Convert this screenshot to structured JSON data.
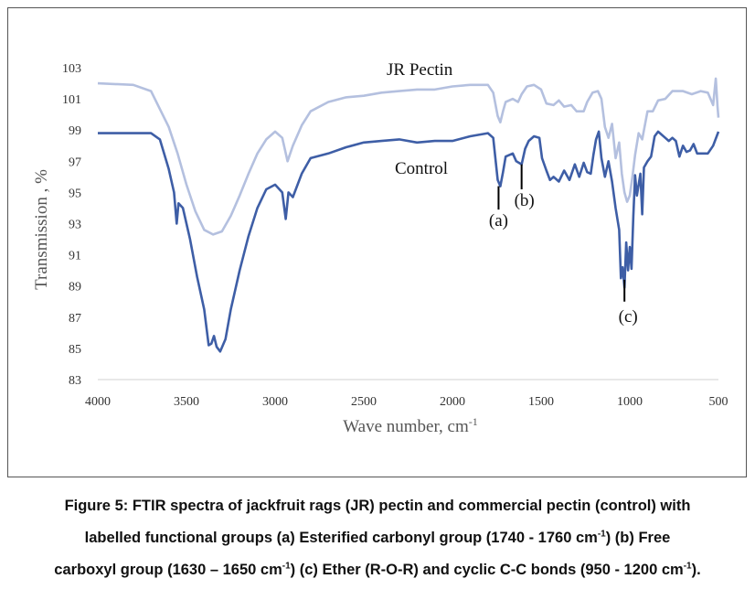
{
  "chart_data": {
    "type": "line",
    "title": "",
    "xlabel": "Wave number, cm",
    "xlabel_sup": "-1",
    "ylabel": "Transmission , %",
    "xlim": [
      4000,
      500
    ],
    "ylim": [
      83,
      103
    ],
    "x_ticks": [
      "4000",
      "3500",
      "3000",
      "2500",
      "2000",
      "1500",
      "1000",
      "500"
    ],
    "y_ticks": [
      "83",
      "85",
      "87",
      "89",
      "91",
      "93",
      "95",
      "97",
      "99",
      "101",
      "103"
    ],
    "grid": false,
    "series": [
      {
        "name": "JR Pectin",
        "color": "#b4c0df",
        "points": [
          [
            4000,
            102.0
          ],
          [
            3800,
            101.9
          ],
          [
            3700,
            101.5
          ],
          [
            3600,
            99.2
          ],
          [
            3550,
            97.5
          ],
          [
            3500,
            95.5
          ],
          [
            3450,
            93.8
          ],
          [
            3400,
            92.6
          ],
          [
            3350,
            92.3
          ],
          [
            3300,
            92.5
          ],
          [
            3250,
            93.5
          ],
          [
            3200,
            94.8
          ],
          [
            3150,
            96.2
          ],
          [
            3100,
            97.5
          ],
          [
            3050,
            98.4
          ],
          [
            3000,
            98.9
          ],
          [
            2960,
            98.5
          ],
          [
            2930,
            97.0
          ],
          [
            2900,
            98.0
          ],
          [
            2850,
            99.3
          ],
          [
            2800,
            100.2
          ],
          [
            2700,
            100.8
          ],
          [
            2600,
            101.1
          ],
          [
            2500,
            101.2
          ],
          [
            2400,
            101.4
          ],
          [
            2300,
            101.5
          ],
          [
            2200,
            101.6
          ],
          [
            2100,
            101.6
          ],
          [
            2000,
            101.8
          ],
          [
            1900,
            101.9
          ],
          [
            1800,
            101.9
          ],
          [
            1770,
            101.4
          ],
          [
            1745,
            99.9
          ],
          [
            1730,
            99.5
          ],
          [
            1715,
            100.2
          ],
          [
            1700,
            100.8
          ],
          [
            1660,
            101.0
          ],
          [
            1630,
            100.8
          ],
          [
            1610,
            101.3
          ],
          [
            1580,
            101.8
          ],
          [
            1540,
            101.9
          ],
          [
            1500,
            101.6
          ],
          [
            1470,
            100.7
          ],
          [
            1430,
            100.6
          ],
          [
            1400,
            100.9
          ],
          [
            1370,
            100.5
          ],
          [
            1330,
            100.6
          ],
          [
            1300,
            100.2
          ],
          [
            1260,
            100.2
          ],
          [
            1240,
            100.8
          ],
          [
            1210,
            101.4
          ],
          [
            1180,
            101.5
          ],
          [
            1160,
            101.0
          ],
          [
            1140,
            99.2
          ],
          [
            1120,
            98.5
          ],
          [
            1100,
            99.4
          ],
          [
            1080,
            97.2
          ],
          [
            1060,
            98.2
          ],
          [
            1045,
            96.2
          ],
          [
            1030,
            95.0
          ],
          [
            1015,
            94.4
          ],
          [
            1000,
            94.8
          ],
          [
            985,
            96.0
          ],
          [
            970,
            97.4
          ],
          [
            950,
            98.8
          ],
          [
            930,
            98.4
          ],
          [
            900,
            100.2
          ],
          [
            870,
            100.2
          ],
          [
            840,
            100.9
          ],
          [
            800,
            101.0
          ],
          [
            760,
            101.5
          ],
          [
            700,
            101.5
          ],
          [
            650,
            101.3
          ],
          [
            600,
            101.5
          ],
          [
            560,
            101.4
          ],
          [
            530,
            100.6
          ],
          [
            515,
            102.3
          ],
          [
            505,
            100.5
          ],
          [
            500,
            99.8
          ]
        ]
      },
      {
        "name": "Control",
        "color": "#3e5ea6",
        "points": [
          [
            4000,
            98.8
          ],
          [
            3850,
            98.8
          ],
          [
            3700,
            98.8
          ],
          [
            3650,
            98.4
          ],
          [
            3600,
            96.5
          ],
          [
            3570,
            95.0
          ],
          [
            3555,
            93.0
          ],
          [
            3545,
            94.3
          ],
          [
            3520,
            94.0
          ],
          [
            3480,
            92.0
          ],
          [
            3440,
            89.6
          ],
          [
            3400,
            87.5
          ],
          [
            3375,
            85.2
          ],
          [
            3360,
            85.3
          ],
          [
            3345,
            85.8
          ],
          [
            3330,
            85.1
          ],
          [
            3310,
            84.8
          ],
          [
            3280,
            85.6
          ],
          [
            3250,
            87.5
          ],
          [
            3200,
            90.0
          ],
          [
            3150,
            92.2
          ],
          [
            3100,
            94.0
          ],
          [
            3050,
            95.2
          ],
          [
            3000,
            95.5
          ],
          [
            2960,
            95.0
          ],
          [
            2940,
            93.3
          ],
          [
            2925,
            95.0
          ],
          [
            2900,
            94.7
          ],
          [
            2850,
            96.2
          ],
          [
            2800,
            97.2
          ],
          [
            2700,
            97.5
          ],
          [
            2600,
            97.9
          ],
          [
            2500,
            98.2
          ],
          [
            2400,
            98.3
          ],
          [
            2300,
            98.4
          ],
          [
            2200,
            98.2
          ],
          [
            2100,
            98.3
          ],
          [
            2000,
            98.3
          ],
          [
            1900,
            98.6
          ],
          [
            1800,
            98.8
          ],
          [
            1770,
            98.5
          ],
          [
            1745,
            95.8
          ],
          [
            1730,
            95.4
          ],
          [
            1715,
            96.3
          ],
          [
            1700,
            97.3
          ],
          [
            1660,
            97.5
          ],
          [
            1640,
            97.0
          ],
          [
            1610,
            96.8
          ],
          [
            1590,
            97.8
          ],
          [
            1570,
            98.3
          ],
          [
            1540,
            98.6
          ],
          [
            1510,
            98.5
          ],
          [
            1495,
            97.2
          ],
          [
            1470,
            96.4
          ],
          [
            1450,
            95.8
          ],
          [
            1430,
            96.0
          ],
          [
            1400,
            95.7
          ],
          [
            1370,
            96.4
          ],
          [
            1340,
            95.8
          ],
          [
            1310,
            96.8
          ],
          [
            1285,
            96.0
          ],
          [
            1260,
            96.9
          ],
          [
            1240,
            96.3
          ],
          [
            1220,
            96.2
          ],
          [
            1205,
            97.4
          ],
          [
            1190,
            98.4
          ],
          [
            1175,
            98.9
          ],
          [
            1160,
            97.2
          ],
          [
            1140,
            96.0
          ],
          [
            1120,
            97.0
          ],
          [
            1100,
            95.7
          ],
          [
            1080,
            94.0
          ],
          [
            1060,
            92.6
          ],
          [
            1050,
            89.5
          ],
          [
            1040,
            90.2
          ],
          [
            1030,
            88.9
          ],
          [
            1020,
            91.8
          ],
          [
            1010,
            90.0
          ],
          [
            1000,
            91.5
          ],
          [
            990,
            90.1
          ],
          [
            980,
            93.5
          ],
          [
            970,
            96.1
          ],
          [
            960,
            94.8
          ],
          [
            940,
            96.2
          ],
          [
            930,
            93.6
          ],
          [
            920,
            96.6
          ],
          [
            900,
            97.0
          ],
          [
            880,
            97.3
          ],
          [
            860,
            98.6
          ],
          [
            840,
            98.9
          ],
          [
            800,
            98.5
          ],
          [
            780,
            98.3
          ],
          [
            760,
            98.5
          ],
          [
            740,
            98.3
          ],
          [
            720,
            97.3
          ],
          [
            700,
            98.0
          ],
          [
            680,
            97.6
          ],
          [
            660,
            97.7
          ],
          [
            640,
            98.1
          ],
          [
            620,
            97.5
          ],
          [
            600,
            97.5
          ],
          [
            560,
            97.5
          ],
          [
            530,
            98.0
          ],
          [
            500,
            98.9
          ]
        ]
      }
    ],
    "annotations": [
      {
        "label": "(a)",
        "x": 1740,
        "y_from": 95.4,
        "y_to": 93.9
      },
      {
        "label": "(b)",
        "x": 1610,
        "y_from": 96.8,
        "y_to": 95.2
      },
      {
        "label": "(c)",
        "x": 1030,
        "y_from": 89.4,
        "y_to": 88.0
      }
    ]
  },
  "caption": {
    "line1": "Figure 5: FTIR spectra of jackfruit rags (JR) pectin and commercial pectin (control) with",
    "line2_a": "labelled functional groups (a) Esterified carbonyl group (1740 - 1760 cm",
    "line2_sup1": "-1",
    "line2_b": ") (b) Free",
    "line3_a": "carboxyl group (1630 – 1650 cm",
    "line3_sup1": "-1",
    "line3_b": ") (c) Ether (R-O-R) and cyclic C-C bonds (950 - 1200 cm",
    "line3_sup2": "-1",
    "line3_c": ")."
  }
}
